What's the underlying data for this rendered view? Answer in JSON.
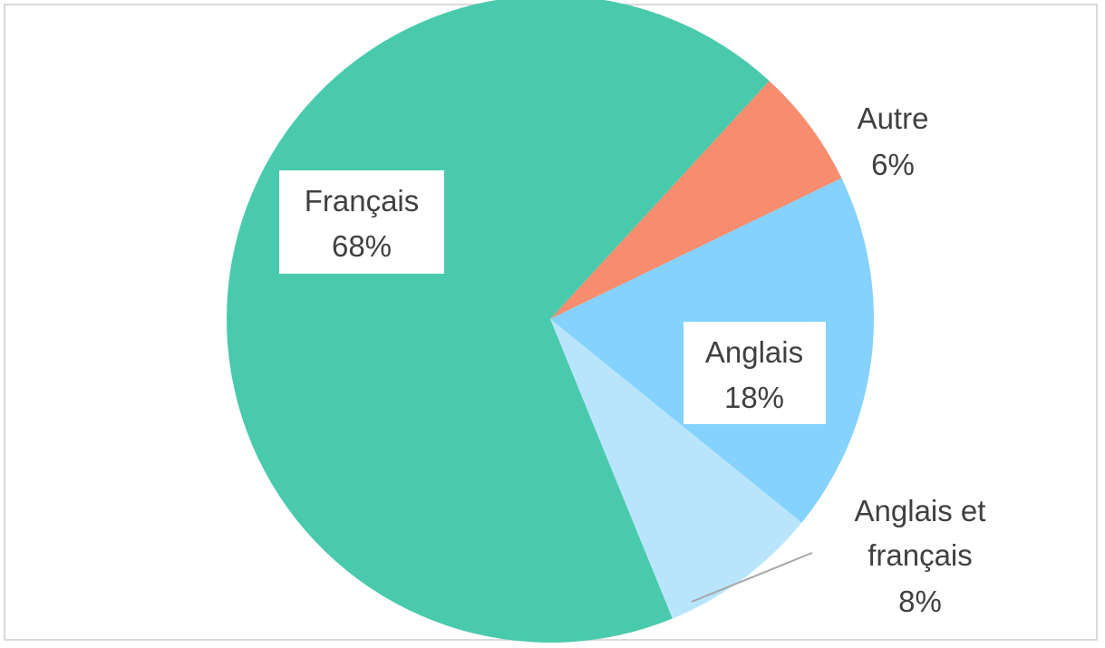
{
  "chart_data": {
    "type": "pie",
    "slices": [
      {
        "label": "Français",
        "value": 68,
        "display": "68%",
        "color": "#49CAAC"
      },
      {
        "label": "Autre",
        "value": 6,
        "display": "6%",
        "color": "#F78D6E"
      },
      {
        "label": "Anglais",
        "value": 18,
        "display": "18%",
        "color": "#84D2FD"
      },
      {
        "label": "Anglais et",
        "label_line2": "français",
        "value": 8,
        "display": "8%",
        "color": "#B9E5FC"
      }
    ],
    "colors": {
      "text": "#404040",
      "border": "#d9d9d9",
      "leader_line": "#a6a6a6",
      "label_box": "#ffffff"
    }
  }
}
